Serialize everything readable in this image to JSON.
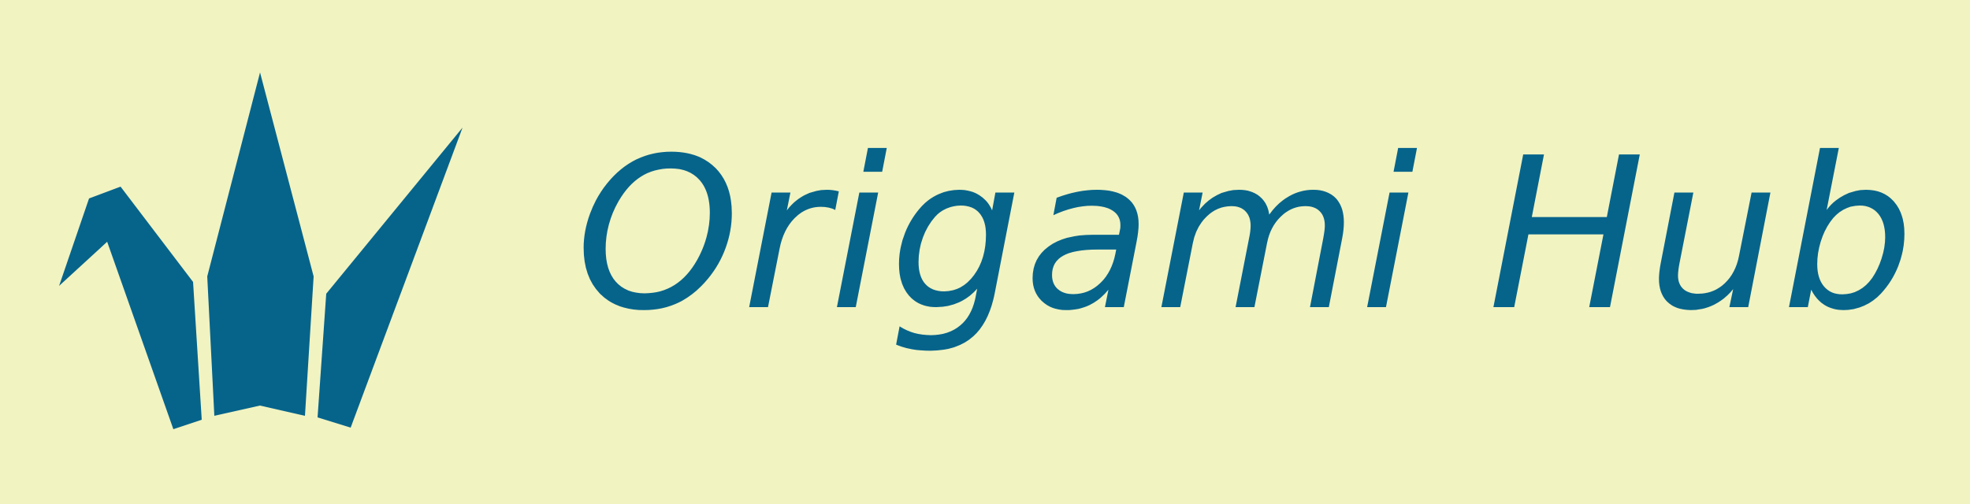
{
  "logo": {
    "name": "Origami Hub",
    "icon": "origami-crane-icon"
  },
  "colors": {
    "background": "#f1f3c1",
    "brand": "#06648b"
  }
}
